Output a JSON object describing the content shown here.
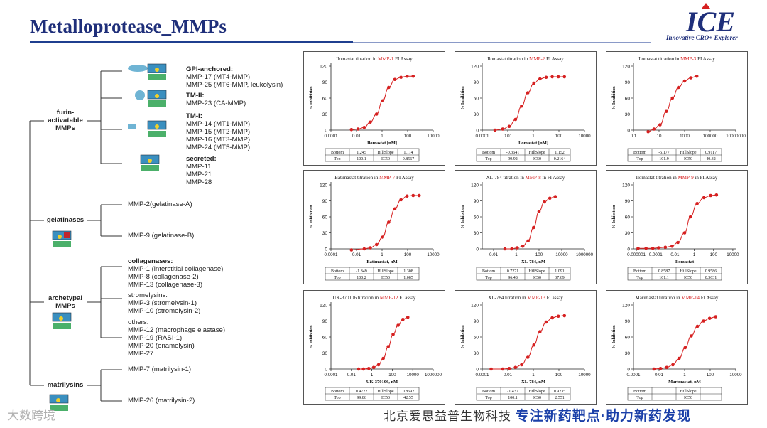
{
  "header": {
    "title": "Metalloprotease_MMPs"
  },
  "logo": {
    "text": "ICE",
    "tagline": "Innovative CRO+ Explorer"
  },
  "tree": {
    "groups": [
      {
        "name": "furin-\nactivatable\nMMPs"
      },
      {
        "name": "gelatinases"
      },
      {
        "name": "archetypal\nMMPs"
      },
      {
        "name": "matrilysins"
      }
    ],
    "furin": [
      {
        "header": "GPI-anchored:",
        "items": [
          "MMP-17 (MT4-MMP)",
          "MMP-25 (MT6-MMP, leukolysin)"
        ]
      },
      {
        "header": "TM-II:",
        "items": [
          "MMP-23 (CA-MMP)"
        ]
      },
      {
        "header": "TM-I:",
        "items": [
          "MMP-14 (MT1-MMP)",
          "MMP-15 (MT2-MMP)",
          "MMP-16 (MT3-MMP)",
          "MMP-24 (MT5-MMP)"
        ]
      },
      {
        "header": "secreted:",
        "items": [
          "MMP-11",
          "MMP-21",
          "MMP-28"
        ]
      }
    ],
    "gelatinases": [
      "MMP-2(gelatinase-A)",
      "MMP-9 (gelatinase-B)"
    ],
    "archetypal": [
      {
        "header": "collagenases:",
        "items": [
          "MMP-1 (interstitial collagenase)",
          "MMP-8 (collagenase-2)",
          "MMP-13 (collagenase-3)"
        ]
      },
      {
        "header": "stromelysins:",
        "items": [
          "MMP-3 (stromelysin-1)",
          "MMP-10 (stromelysin-2)"
        ]
      },
      {
        "header": "others:",
        "items": [
          "MMP-12 (macrophage elastase)",
          "MMP-19 (RASI-1)",
          "MMP-20 (enamelysin)",
          "MMP-27"
        ]
      }
    ],
    "matrilysins": [
      "MMP-7 (matrilysin-1)",
      "MMP-26 (matrilysin-2)"
    ]
  },
  "colors": {
    "curve": "#d62020",
    "highlight": "#d62020",
    "axis": "#222222",
    "title_blue": "#1f2f7a"
  },
  "chart_data": [
    {
      "type": "line",
      "title_pre": "Ilomastat titration in ",
      "title_hl": "MMP-1",
      "title_post": " FI Assay",
      "xlabel": "Ilomastat [nM]",
      "ylabel": "% Inhibition",
      "xscale": "log",
      "xticks": [
        "0.0001",
        "0.01",
        "1",
        "100",
        "10000"
      ],
      "xlim": [
        0.0001,
        10000
      ],
      "yticks": [
        "0",
        "30",
        "60",
        "90",
        "120"
      ],
      "ylim": [
        0,
        120
      ],
      "x": [
        0.004,
        0.013,
        0.04,
        0.12,
        0.37,
        1.1,
        3.3,
        10,
        30,
        90,
        270
      ],
      "y": [
        1,
        2,
        5,
        15,
        30,
        55,
        80,
        95,
        99,
        101,
        101
      ],
      "params": [
        [
          "Bottom",
          "1.245",
          "HillSlope",
          "1.114"
        ],
        [
          "Top",
          "100.1",
          "IC50",
          "0.8567"
        ]
      ]
    },
    {
      "type": "line",
      "title_pre": "Ilomastat titration in ",
      "title_hl": "MMP-2",
      "title_post": " FI Assay",
      "xlabel": "Ilomastat [nM]",
      "ylabel": "% Inhibition",
      "xscale": "log",
      "xticks": [
        "0.0001",
        "0.01",
        "1",
        "100",
        "10000"
      ],
      "xlim": [
        0.0001,
        10000
      ],
      "yticks": [
        "0",
        "30",
        "60",
        "90",
        "120"
      ],
      "ylim": [
        0,
        120
      ],
      "x": [
        0.001,
        0.004,
        0.013,
        0.04,
        0.12,
        0.37,
        1.1,
        3.3,
        10,
        30,
        90,
        270
      ],
      "y": [
        0,
        2,
        7,
        20,
        45,
        70,
        88,
        96,
        99,
        100,
        100,
        100
      ],
      "params": [
        [
          "Bottom",
          "-0.3641",
          "HillSlope",
          "1.152"
        ],
        [
          "Top",
          "99.92",
          "IC50",
          "0.2164"
        ]
      ]
    },
    {
      "type": "line",
      "title_pre": "Ilomastat titration in ",
      "title_hl": "MMP-3",
      "title_post": " FI Assay",
      "xlabel": "",
      "ylabel": "% Inhibition",
      "xscale": "log",
      "xticks": [
        "0.1",
        "10",
        "1000",
        "100000",
        "10000000"
      ],
      "xlim": [
        0.1,
        10000000
      ],
      "yticks": [
        "0",
        "30",
        "60",
        "90",
        "120"
      ],
      "ylim": [
        0,
        120
      ],
      "x": [
        1.4,
        4,
        12,
        37,
        110,
        330,
        1000,
        3000,
        9000
      ],
      "y": [
        -3,
        2,
        10,
        35,
        60,
        80,
        92,
        98,
        101
      ],
      "params": [
        [
          "Bottom",
          "-5.177",
          "HillSlope",
          "0.9117"
        ],
        [
          "Top",
          "101.9",
          "IC50",
          "40.32"
        ]
      ]
    },
    {
      "type": "line",
      "title_pre": "Batimastat titration in ",
      "title_hl": "MMP-7",
      "title_post": " FI Assay",
      "xlabel": "Batimastat, nM",
      "ylabel": "% Inhibition",
      "xscale": "log",
      "xticks": [
        "0.0001",
        "0.01",
        "1",
        "100",
        "10000"
      ],
      "xlim": [
        0.0001,
        10000
      ],
      "yticks": [
        "0",
        "30",
        "60",
        "90",
        "120"
      ],
      "ylim": [
        0,
        120
      ],
      "x": [
        0.004,
        0.04,
        0.12,
        0.37,
        1.1,
        3.3,
        10,
        30,
        90,
        270,
        800
      ],
      "y": [
        -2,
        0,
        2,
        8,
        22,
        50,
        75,
        92,
        99,
        100,
        100
      ],
      "params": [
        [
          "Bottom",
          "-1.849",
          "HillSlope",
          "1.308"
        ],
        [
          "Top",
          "100.2",
          "IC50",
          "1.085"
        ]
      ]
    },
    {
      "type": "line",
      "title_pre": "XL-784 titration in ",
      "title_hl": "MMP-8",
      "title_post": " in FI Assay",
      "xlabel": "XL-784, nM",
      "ylabel": "% Inhibition",
      "xscale": "log",
      "xticks": [
        "0.01",
        "1",
        "100",
        "10000",
        "1000000"
      ],
      "xlim": [
        0.001,
        1000000
      ],
      "yticks": [
        "0",
        "30",
        "60",
        "90",
        "120"
      ],
      "ylim": [
        0,
        120
      ],
      "x": [
        0.1,
        0.4,
        1.2,
        3.7,
        11,
        33,
        100,
        300,
        900,
        2700
      ],
      "y": [
        0,
        0,
        2,
        5,
        15,
        40,
        70,
        88,
        95,
        98
      ],
      "params": [
        [
          "Bottom",
          "0.7271",
          "HillSlope",
          "1.091"
        ],
        [
          "Top",
          "96.48",
          "IC50",
          "37.69"
        ]
      ]
    },
    {
      "type": "line",
      "title_pre": "Ilomastat titration in ",
      "title_hl": "MMP-9",
      "title_post": " in FI Assay",
      "xlabel": "Ilomastat",
      "ylabel": "% Inhibition",
      "xscale": "log",
      "xticks": [
        "0.000001",
        "0.0001",
        "0.01",
        "1",
        "100",
        "10000"
      ],
      "xlim": [
        5e-07,
        20000
      ],
      "yticks": [
        "0",
        "30",
        "60",
        "90",
        "120"
      ],
      "ylim": [
        0,
        120
      ],
      "x": [
        1.5e-06,
        1e-05,
        5e-05,
        0.0002,
        0.001,
        0.005,
        0.02,
        0.1,
        0.4,
        2,
        10,
        50,
        200
      ],
      "y": [
        1,
        1,
        1,
        2,
        3,
        5,
        12,
        30,
        60,
        85,
        96,
        100,
        101
      ],
      "params": [
        [
          "Bottom",
          "0.8587",
          "HillSlope",
          "0.9586"
        ],
        [
          "Top",
          "101.1",
          "IC50",
          "0.3631"
        ]
      ]
    },
    {
      "type": "line",
      "title_pre": "UK-370106 titration in ",
      "title_hl": "MMP-12",
      "title_post": " FI assay",
      "xlabel": "UK-370106, nM",
      "ylabel": "% Inhibition",
      "xscale": "log",
      "xticks": [
        "0.0001",
        "0.01",
        "1",
        "100",
        "10000",
        "1000000"
      ],
      "xlim": [
        0.0001,
        1000000
      ],
      "yticks": [
        "0",
        "30",
        "60",
        "90",
        "120"
      ],
      "ylim": [
        0,
        120
      ],
      "x": [
        0.05,
        0.15,
        0.5,
        1.5,
        4.5,
        13,
        40,
        120,
        370,
        1100,
        3300
      ],
      "y": [
        0,
        0,
        1,
        3,
        8,
        20,
        42,
        65,
        82,
        93,
        97
      ],
      "params": [
        [
          "Bottom",
          "0.4722",
          "HillSlope",
          "0.8692"
        ],
        [
          "Top",
          "99.86",
          "IC50",
          "42.55"
        ]
      ]
    },
    {
      "type": "line",
      "title_pre": "XL-784 titration in ",
      "title_hl": "MMP-13",
      "title_post": " FI assay",
      "xlabel": "XL-784, nM",
      "ylabel": "% Inhibition",
      "xscale": "log",
      "xticks": [
        "0.0001",
        "0.01",
        "1",
        "100",
        "10000"
      ],
      "xlim": [
        0.0001,
        10000
      ],
      "yticks": [
        "0",
        "30",
        "60",
        "90",
        "120"
      ],
      "ylim": [
        0,
        120
      ],
      "x": [
        0.0005,
        0.004,
        0.013,
        0.04,
        0.12,
        0.37,
        1.1,
        3.3,
        10,
        30,
        90,
        270
      ],
      "y": [
        0,
        0,
        1,
        3,
        8,
        22,
        45,
        70,
        88,
        96,
        99,
        100
      ],
      "params": [
        [
          "Bottom",
          "-1.437",
          "HillSlope",
          "0.9235"
        ],
        [
          "Top",
          "100.1",
          "IC50",
          "2.551"
        ]
      ]
    },
    {
      "type": "line",
      "title_pre": "Marimastat titration in ",
      "title_hl": "MMP-14",
      "title_post": " FI Assay",
      "xlabel": "Marimastat, nM",
      "ylabel": "% Inhibition",
      "xscale": "log",
      "xticks": [
        "0.0001",
        "0.01",
        "1",
        "100",
        "10000"
      ],
      "xlim": [
        0.0001,
        10000
      ],
      "yticks": [
        "0",
        "30",
        "60",
        "90",
        "120"
      ],
      "ylim": [
        0,
        120
      ],
      "x": [
        0.004,
        0.013,
        0.04,
        0.12,
        0.37,
        1.1,
        3.3,
        10,
        30,
        90,
        270
      ],
      "y": [
        0,
        1,
        3,
        8,
        20,
        40,
        62,
        80,
        90,
        95,
        98
      ],
      "params": [
        [
          "Bottom",
          "",
          "HillSlope",
          ""
        ],
        [
          "Top",
          "",
          "IC50",
          ""
        ]
      ]
    }
  ],
  "footer": {
    "company": "北京爱思益普生物科技",
    "slogan": "专注新药靶点·助力新药发现"
  },
  "watermark": {
    "left": "大数跨境"
  }
}
